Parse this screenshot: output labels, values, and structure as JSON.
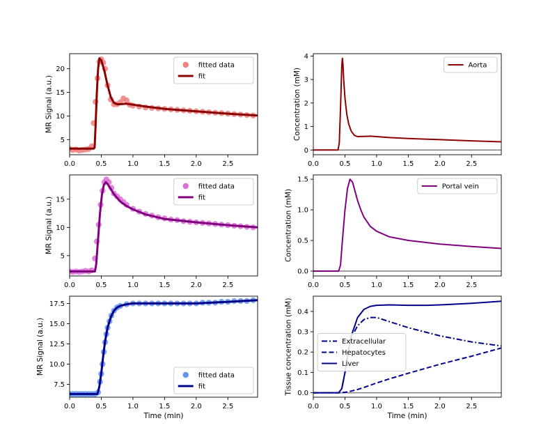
{
  "chart_data": [
    {
      "type": "scatter",
      "xlabel": "",
      "ylabel": "MR Signal (a.u.)",
      "xlim": [
        0.0,
        2.97
      ],
      "ylim": [
        1.8,
        23.2
      ],
      "xticks": [
        0.0,
        0.5,
        1.0,
        1.5,
        2.0,
        2.5
      ],
      "xtick_labels": [
        "0.0",
        "0.5",
        "1.0",
        "1.5",
        "2.0",
        "2.5"
      ],
      "yticks": [
        5,
        10,
        15,
        20
      ],
      "ytick_labels": [
        "5",
        "10",
        "15",
        "20"
      ],
      "legend": "top-right",
      "baseline": null,
      "series": [
        {
          "name": "fitted data",
          "kind": "scatter",
          "color": "#f08080",
          "x": [
            0.0,
            0.05,
            0.1,
            0.15,
            0.2,
            0.25,
            0.3,
            0.35,
            0.38,
            0.41,
            0.44,
            0.47,
            0.5,
            0.53,
            0.56,
            0.6,
            0.65,
            0.7,
            0.75,
            0.8,
            0.85,
            0.9,
            0.95,
            1.0,
            1.1,
            1.2,
            1.3,
            1.4,
            1.5,
            1.6,
            1.7,
            1.8,
            1.9,
            2.0,
            2.1,
            2.2,
            2.3,
            2.4,
            2.5,
            2.6,
            2.7,
            2.8,
            2.9
          ],
          "y": [
            3.0,
            2.8,
            2.9,
            2.7,
            2.8,
            2.9,
            3.0,
            3.6,
            8.5,
            13.0,
            18.0,
            21.5,
            22.0,
            21.3,
            20.0,
            16.5,
            13.5,
            12.5,
            12.5,
            12.9,
            13.7,
            13.3,
            12.4,
            12.2,
            12.0,
            11.8,
            11.7,
            11.6,
            11.5,
            11.4,
            11.3,
            11.2,
            11.1,
            11.0,
            10.9,
            10.8,
            10.7,
            10.6,
            10.5,
            10.4,
            10.3,
            10.2,
            10.1
          ]
        },
        {
          "name": "fit",
          "kind": "line",
          "color": "#8b0000",
          "x": [
            0.0,
            0.38,
            0.395,
            0.41,
            0.43,
            0.45,
            0.47,
            0.5,
            0.55,
            0.6,
            0.65,
            0.7,
            0.75,
            0.8,
            0.9,
            1.0,
            1.2,
            1.5,
            2.0,
            2.5,
            2.97
          ],
          "y": [
            3.1,
            3.1,
            3.3,
            8.0,
            15.0,
            20.0,
            22.2,
            21.8,
            19.5,
            16.5,
            14.0,
            12.8,
            12.5,
            12.5,
            12.6,
            12.4,
            12.0,
            11.5,
            11.0,
            10.5,
            10.1
          ]
        }
      ]
    },
    {
      "type": "line",
      "xlabel": "",
      "ylabel": "Concentration (mM)",
      "xlim": [
        0.0,
        2.97
      ],
      "ylim": [
        -0.2,
        4.1
      ],
      "xticks": [
        0.0,
        0.5,
        1.0,
        1.5,
        2.0,
        2.5
      ],
      "xtick_labels": [
        "0.0",
        "0.5",
        "1.0",
        "1.5",
        "2.0",
        "2.5"
      ],
      "yticks": [
        0,
        1,
        2,
        3,
        4
      ],
      "ytick_labels": [
        "0",
        "1",
        "2",
        "3",
        "4"
      ],
      "legend": "top-right",
      "baseline": 0,
      "series": [
        {
          "name": "Aorta",
          "kind": "line",
          "color": "#8b0000",
          "x": [
            0.0,
            0.39,
            0.41,
            0.43,
            0.45,
            0.46,
            0.47,
            0.48,
            0.5,
            0.53,
            0.56,
            0.6,
            0.65,
            0.7,
            0.8,
            0.9,
            1.0,
            1.2,
            1.5,
            2.0,
            2.5,
            2.97
          ],
          "y": [
            0.0,
            0.0,
            0.3,
            1.8,
            3.6,
            3.9,
            3.6,
            3.0,
            2.2,
            1.5,
            1.1,
            0.8,
            0.62,
            0.57,
            0.58,
            0.59,
            0.57,
            0.53,
            0.49,
            0.44,
            0.39,
            0.35
          ]
        }
      ]
    },
    {
      "type": "scatter",
      "xlabel": "",
      "ylabel": "MR Signal (a.u.)",
      "xlim": [
        0.0,
        2.97
      ],
      "ylim": [
        1.4,
        19.3
      ],
      "xticks": [
        0.0,
        0.5,
        1.0,
        1.5,
        2.0,
        2.5
      ],
      "xtick_labels": [
        "0.0",
        "0.5",
        "1.0",
        "1.5",
        "2.0",
        "2.5"
      ],
      "yticks": [
        5,
        10,
        15
      ],
      "ytick_labels": [
        "5",
        "10",
        "15"
      ],
      "legend": "top-right",
      "baseline": null,
      "series": [
        {
          "name": "fitted data",
          "kind": "scatter",
          "color": "#da70d6",
          "x": [
            0.0,
            0.05,
            0.1,
            0.15,
            0.2,
            0.25,
            0.3,
            0.35,
            0.4,
            0.43,
            0.46,
            0.49,
            0.52,
            0.55,
            0.58,
            0.62,
            0.66,
            0.7,
            0.75,
            0.8,
            0.85,
            0.9,
            1.0,
            1.1,
            1.2,
            1.3,
            1.4,
            1.5,
            1.6,
            1.7,
            1.8,
            1.9,
            2.0,
            2.1,
            2.2,
            2.3,
            2.4,
            2.5,
            2.6,
            2.7,
            2.8,
            2.9
          ],
          "y": [
            2.2,
            2.1,
            2.2,
            2.1,
            2.2,
            2.3,
            2.2,
            2.4,
            4.5,
            7.5,
            10.5,
            14.0,
            16.5,
            18.0,
            18.5,
            18.0,
            17.0,
            16.0,
            15.5,
            15.0,
            14.5,
            14.0,
            13.3,
            12.8,
            12.4,
            12.1,
            11.8,
            11.6,
            11.4,
            11.3,
            11.1,
            11.0,
            10.9,
            10.8,
            10.7,
            10.6,
            10.5,
            10.4,
            10.3,
            10.2,
            10.1,
            10.0
          ]
        },
        {
          "name": "fit",
          "kind": "line",
          "color": "#800080",
          "x": [
            0.0,
            0.4,
            0.42,
            0.45,
            0.48,
            0.51,
            0.54,
            0.57,
            0.6,
            0.65,
            0.7,
            0.8,
            0.9,
            1.0,
            1.2,
            1.5,
            2.0,
            2.5,
            2.97
          ],
          "y": [
            2.2,
            2.2,
            3.5,
            8.0,
            12.5,
            15.8,
            17.5,
            18.0,
            17.7,
            16.8,
            15.9,
            14.6,
            13.8,
            13.2,
            12.3,
            11.5,
            10.9,
            10.4,
            10.0
          ]
        }
      ]
    },
    {
      "type": "line",
      "xlabel": "",
      "ylabel": "Concentration (mM)",
      "xlim": [
        0.0,
        2.97
      ],
      "ylim": [
        -0.08,
        1.57
      ],
      "xticks": [
        0.0,
        0.5,
        1.0,
        1.5,
        2.0,
        2.5
      ],
      "xtick_labels": [
        "0.0",
        "0.5",
        "1.0",
        "1.5",
        "2.0",
        "2.5"
      ],
      "yticks": [
        0.0,
        0.5,
        1.0,
        1.5
      ],
      "ytick_labels": [
        "0.0",
        "0.5",
        "1.0",
        "1.5"
      ],
      "legend": "top-right",
      "baseline": 0,
      "series": [
        {
          "name": "Portal vein",
          "kind": "line",
          "color": "#800080",
          "x": [
            0.0,
            0.4,
            0.43,
            0.46,
            0.5,
            0.54,
            0.58,
            0.62,
            0.66,
            0.7,
            0.75,
            0.8,
            0.9,
            1.0,
            1.2,
            1.5,
            2.0,
            2.5,
            2.97
          ],
          "y": [
            0.0,
            0.0,
            0.1,
            0.5,
            1.0,
            1.35,
            1.5,
            1.45,
            1.3,
            1.15,
            1.0,
            0.88,
            0.73,
            0.65,
            0.56,
            0.5,
            0.44,
            0.4,
            0.37
          ]
        }
      ]
    },
    {
      "type": "scatter",
      "xlabel": "Time (min)",
      "ylabel": "MR Signal (a.u.)",
      "xlim": [
        0.0,
        2.97
      ],
      "ylim": [
        5.9,
        18.4
      ],
      "xticks": [
        0.0,
        0.5,
        1.0,
        1.5,
        2.0,
        2.5
      ],
      "xtick_labels": [
        "0.0",
        "0.5",
        "1.0",
        "1.5",
        "2.0",
        "2.5"
      ],
      "yticks": [
        7.5,
        10.0,
        12.5,
        15.0,
        17.5
      ],
      "ytick_labels": [
        "7.5",
        "10.0",
        "12.5",
        "15.0",
        "17.5"
      ],
      "legend": "bottom-right",
      "baseline": null,
      "series": [
        {
          "name": "fitted data",
          "kind": "scatter",
          "color": "#6495ed",
          "x": [
            0.0,
            0.05,
            0.1,
            0.15,
            0.2,
            0.25,
            0.3,
            0.35,
            0.4,
            0.45,
            0.48,
            0.5,
            0.52,
            0.54,
            0.56,
            0.58,
            0.6,
            0.63,
            0.66,
            0.7,
            0.75,
            0.8,
            0.9,
            1.0,
            1.1,
            1.2,
            1.3,
            1.4,
            1.5,
            1.6,
            1.7,
            1.8,
            1.9,
            2.0,
            2.1,
            2.2,
            2.3,
            2.4,
            2.5,
            2.6,
            2.7,
            2.8,
            2.9
          ],
          "y": [
            6.3,
            6.3,
            6.3,
            6.3,
            6.3,
            6.3,
            6.3,
            6.3,
            6.3,
            6.5,
            7.8,
            8.8,
            10.0,
            11.5,
            12.7,
            13.7,
            14.5,
            15.3,
            16.0,
            16.6,
            17.0,
            17.2,
            17.4,
            17.5,
            17.5,
            17.5,
            17.5,
            17.5,
            17.5,
            17.5,
            17.5,
            17.5,
            17.5,
            17.5,
            17.6,
            17.6,
            17.6,
            17.7,
            17.7,
            17.8,
            17.8,
            17.8,
            17.9
          ]
        },
        {
          "name": "fit",
          "kind": "line",
          "color": "#00008b",
          "x": [
            0.0,
            0.44,
            0.47,
            0.5,
            0.53,
            0.56,
            0.6,
            0.65,
            0.7,
            0.75,
            0.8,
            0.9,
            1.0,
            1.2,
            1.5,
            2.0,
            2.5,
            2.97
          ],
          "y": [
            6.3,
            6.3,
            7.2,
            8.9,
            11.0,
            12.8,
            14.5,
            15.8,
            16.6,
            17.0,
            17.2,
            17.4,
            17.5,
            17.5,
            17.5,
            17.5,
            17.7,
            17.9
          ]
        }
      ]
    },
    {
      "type": "line",
      "xlabel": "Time (min)",
      "ylabel": "Tissue concentration (mM)",
      "xlim": [
        0.0,
        2.97
      ],
      "ylim": [
        -0.022,
        0.475
      ],
      "xticks": [
        0.0,
        0.5,
        1.0,
        1.5,
        2.0,
        2.5
      ],
      "xtick_labels": [
        "0.0",
        "0.5",
        "1.0",
        "1.5",
        "2.0",
        "2.5"
      ],
      "yticks": [
        0.0,
        0.1,
        0.2,
        0.3,
        0.4
      ],
      "ytick_labels": [
        "0.0",
        "0.1",
        "0.2",
        "0.3",
        "0.4"
      ],
      "legend": "center-left",
      "baseline": 0,
      "series": [
        {
          "name": "Extracellular",
          "kind": "line",
          "dash": "dashdot",
          "color": "#00008b",
          "x": [
            0.0,
            0.4,
            0.45,
            0.5,
            0.55,
            0.6,
            0.7,
            0.8,
            0.9,
            1.0,
            1.2,
            1.5,
            2.0,
            2.5,
            2.97
          ],
          "y": [
            0.0,
            0.0,
            0.02,
            0.1,
            0.2,
            0.27,
            0.33,
            0.36,
            0.37,
            0.37,
            0.35,
            0.32,
            0.28,
            0.25,
            0.23
          ]
        },
        {
          "name": "Hepatocytes",
          "kind": "line",
          "dash": "dashed",
          "color": "#00008b",
          "x": [
            0.0,
            0.4,
            0.5,
            0.6,
            0.7,
            0.8,
            1.0,
            1.2,
            1.5,
            2.0,
            2.5,
            2.97
          ],
          "y": [
            0.0,
            0.0,
            0.002,
            0.008,
            0.016,
            0.026,
            0.048,
            0.068,
            0.096,
            0.14,
            0.18,
            0.22
          ]
        },
        {
          "name": "Liver",
          "kind": "line",
          "dash": "solid",
          "color": "#00008b",
          "x": [
            0.0,
            0.4,
            0.45,
            0.5,
            0.55,
            0.6,
            0.7,
            0.8,
            0.9,
            1.0,
            1.2,
            1.5,
            1.8,
            2.0,
            2.5,
            2.97
          ],
          "y": [
            0.0,
            0.0,
            0.02,
            0.1,
            0.2,
            0.28,
            0.37,
            0.41,
            0.425,
            0.43,
            0.432,
            0.43,
            0.43,
            0.432,
            0.44,
            0.45
          ]
        }
      ]
    }
  ]
}
